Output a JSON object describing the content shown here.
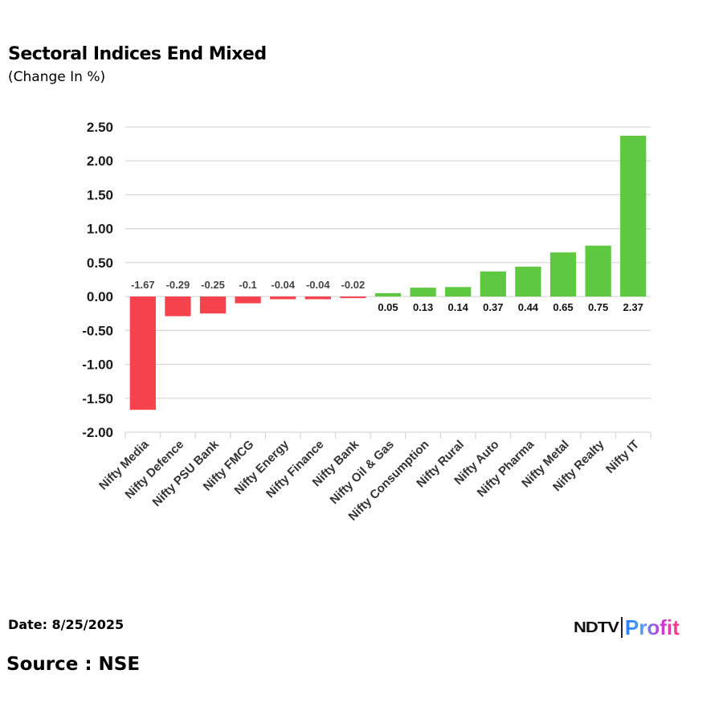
{
  "header": {
    "title": "Sectoral Indices End Mixed",
    "subtitle": "(Change In %)"
  },
  "footer": {
    "date": "Date: 8/25/2025",
    "source": "Source : NSE",
    "logo_left": "NDTV",
    "logo_right": "Profit"
  },
  "colors": {
    "negative": "#f5424c",
    "positive": "#5dc840",
    "grid": "#d9d9d9"
  },
  "chart_data": {
    "type": "bar",
    "title": "Sectoral Indices End Mixed",
    "subtitle": "(Change In %)",
    "xlabel": "",
    "ylabel": "",
    "ylim": [
      -2.0,
      2.5
    ],
    "yticks": [
      2.5,
      2.0,
      1.5,
      1.0,
      0.5,
      0.0,
      -0.5,
      -1.0,
      -1.5,
      -2.0
    ],
    "ytick_labels": [
      "2.50",
      "2.00",
      "1.50",
      "1.00",
      "0.50",
      "0.00",
      "-0.50",
      "-1.00",
      "-1.50",
      "-2.00"
    ],
    "grid": true,
    "legend": "none",
    "categories": [
      "Nifty Media",
      "Nifty Defence",
      "Nifty PSU Bank",
      "Nifty FMCG",
      "Nifty Energy",
      "Nifty Finance",
      "Nifty Bank",
      "Nifty Oil & Gas",
      "Nifty Consumption",
      "Nifty Rural",
      "Nifty Auto",
      "Nifty Pharma",
      "Nifty Metal",
      "Nifty Realty",
      "Nifty IT"
    ],
    "values": [
      -1.67,
      -0.29,
      -0.25,
      -0.1,
      -0.04,
      -0.04,
      -0.02,
      0.05,
      0.13,
      0.14,
      0.37,
      0.44,
      0.65,
      0.75,
      2.37
    ],
    "data_labels": [
      "-1.67",
      "-0.29",
      "-0.25",
      "-0.1",
      "-0.04",
      "-0.04",
      "-0.02",
      "0.05",
      "0.13",
      "0.14",
      "0.37",
      "0.44",
      "0.65",
      "0.75",
      "2.37"
    ]
  }
}
